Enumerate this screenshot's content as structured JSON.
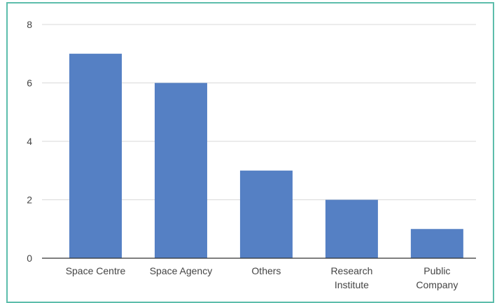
{
  "chart_data": {
    "type": "bar",
    "categories": [
      "Space Centre",
      "Space Agency",
      "Others",
      "Research Institute",
      "Public Company"
    ],
    "category_lines": [
      [
        "Space Centre"
      ],
      [
        "Space Agency"
      ],
      [
        "Others"
      ],
      [
        "Research",
        "Institute"
      ],
      [
        "Public",
        "Company"
      ]
    ],
    "values": [
      7,
      6,
      3,
      2,
      1
    ],
    "ylim": [
      0,
      8
    ],
    "yticks": [
      "0",
      "2",
      "4",
      "6",
      "8"
    ],
    "title": "",
    "xlabel": "",
    "ylabel": "",
    "grid": true,
    "bar_color": "#5580c4",
    "frame_color": "#5dbdab"
  }
}
